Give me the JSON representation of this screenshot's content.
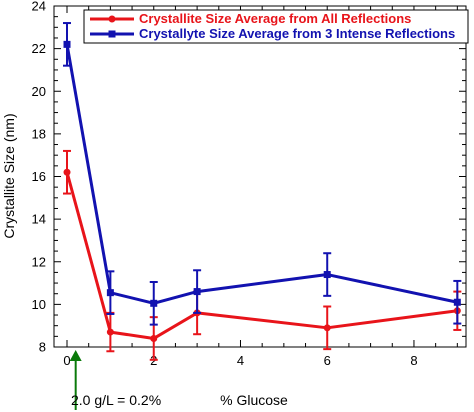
{
  "chart_data": {
    "type": "line",
    "xlabel": "% Glucose",
    "ylabel": "Crystallite Size (nm)",
    "xlim": [
      -0.3,
      9.2
    ],
    "ylim": [
      8,
      24
    ],
    "x_ticks": [
      0,
      2,
      4,
      6,
      8
    ],
    "y_ticks": [
      8,
      10,
      12,
      14,
      16,
      18,
      20,
      22,
      24
    ],
    "grid": false,
    "legend_position": "top-right",
    "series": [
      {
        "name": "Crystallite Size Average from All Reflections",
        "color": "#e8141a",
        "marker": "circle",
        "x": [
          0,
          1,
          2,
          3,
          6,
          9
        ],
        "y": [
          16.2,
          8.7,
          8.4,
          9.6,
          8.9,
          9.7
        ],
        "err": [
          1.0,
          0.9,
          1.0,
          1.0,
          1.0,
          0.9
        ]
      },
      {
        "name": "Crystallyte Size Average from 3 Intense Reflections",
        "color": "#1212b0",
        "marker": "square",
        "x": [
          0,
          1,
          2,
          3,
          6,
          9
        ],
        "y": [
          22.2,
          10.55,
          10.05,
          10.6,
          11.4,
          10.1
        ],
        "err": [
          1.0,
          1.0,
          1.0,
          1.0,
          1.0,
          1.0
        ]
      }
    ],
    "annotation": {
      "text": "2.0 g/L = 0.2%",
      "x": 0.2,
      "color": "#0a7a0a"
    }
  }
}
